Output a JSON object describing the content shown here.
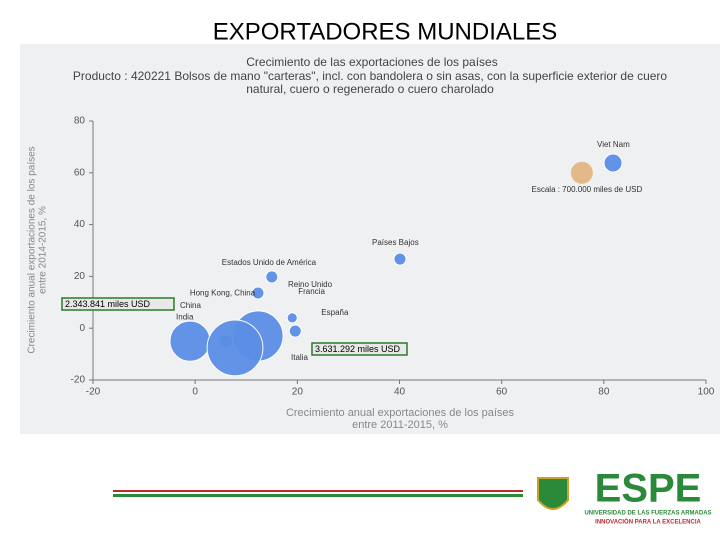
{
  "slide_title": "EXPORTADORES MUNDIALES",
  "chart_data": {
    "type": "scatter",
    "title": "Crecimiento de las exportaciones de los países",
    "subtitle": [
      "Producto : 420221 Bolsos de mano \"carteras\", incl. con bandolera o sin asas, con la superficie exterior de cuero",
      "natural, cuero o regenerado o cuero charolado"
    ],
    "x_label": [
      "Crecimiento anual exportaciones de los países",
      "entre 2011-2015, %"
    ],
    "y_label": [
      "Crecimiento anual exportaciones de los países",
      "entre 2014-2015, %"
    ],
    "xlim": [
      -20,
      100
    ],
    "xticks": [
      -20,
      0,
      20,
      40,
      60,
      80,
      100
    ],
    "ylim": [
      -20,
      80
    ],
    "yticks": [
      -20,
      0,
      20,
      40,
      60,
      80
    ],
    "color": "#5b8fe6",
    "points": [
      {
        "name": "Viet Nam",
        "x": 81.8,
        "y": 63.8,
        "size": 470000
      },
      {
        "name": "Países Bajos",
        "x": 40.1,
        "y": 26.7,
        "size": 210000
      },
      {
        "name": "Estados Unido de América",
        "x": 15,
        "y": 19.8,
        "size": 210000
      },
      {
        "name": "Reino Unido",
        "x": 12.3,
        "y": 13.6,
        "size": 210000
      },
      {
        "name": "Francia",
        "x": 19,
        "y": 4,
        "size": 150000
      },
      {
        "name": "España",
        "x": 19.6,
        "y": -1.1,
        "size": 210000
      },
      {
        "name": "Hong Kong, China",
        "x": 6,
        "y": -5,
        "size": 280000
      },
      {
        "name": "China",
        "x": 12.3,
        "y": -3,
        "size": 3631292
      },
      {
        "name": "India",
        "x": -1,
        "y": -5,
        "size": 2343841
      },
      {
        "name": "Italia",
        "x": 7.8,
        "y": -7.6,
        "size": 4500000
      }
    ],
    "scale_bubble": {
      "label": "Escala : 700.000 miles de USD",
      "x": 75.7,
      "y": 60,
      "size": 700000,
      "color": "#e3b98a"
    },
    "annotations": [
      "2.343.841 miles USD",
      "3.631.292 miles USD"
    ]
  },
  "footer": {
    "brand": "ESPE",
    "line1": "UNIVERSIDAD DE LAS FUERZAS ARMADAS",
    "line2": "INNOVACIÓN PARA LA EXCELENCIA"
  }
}
